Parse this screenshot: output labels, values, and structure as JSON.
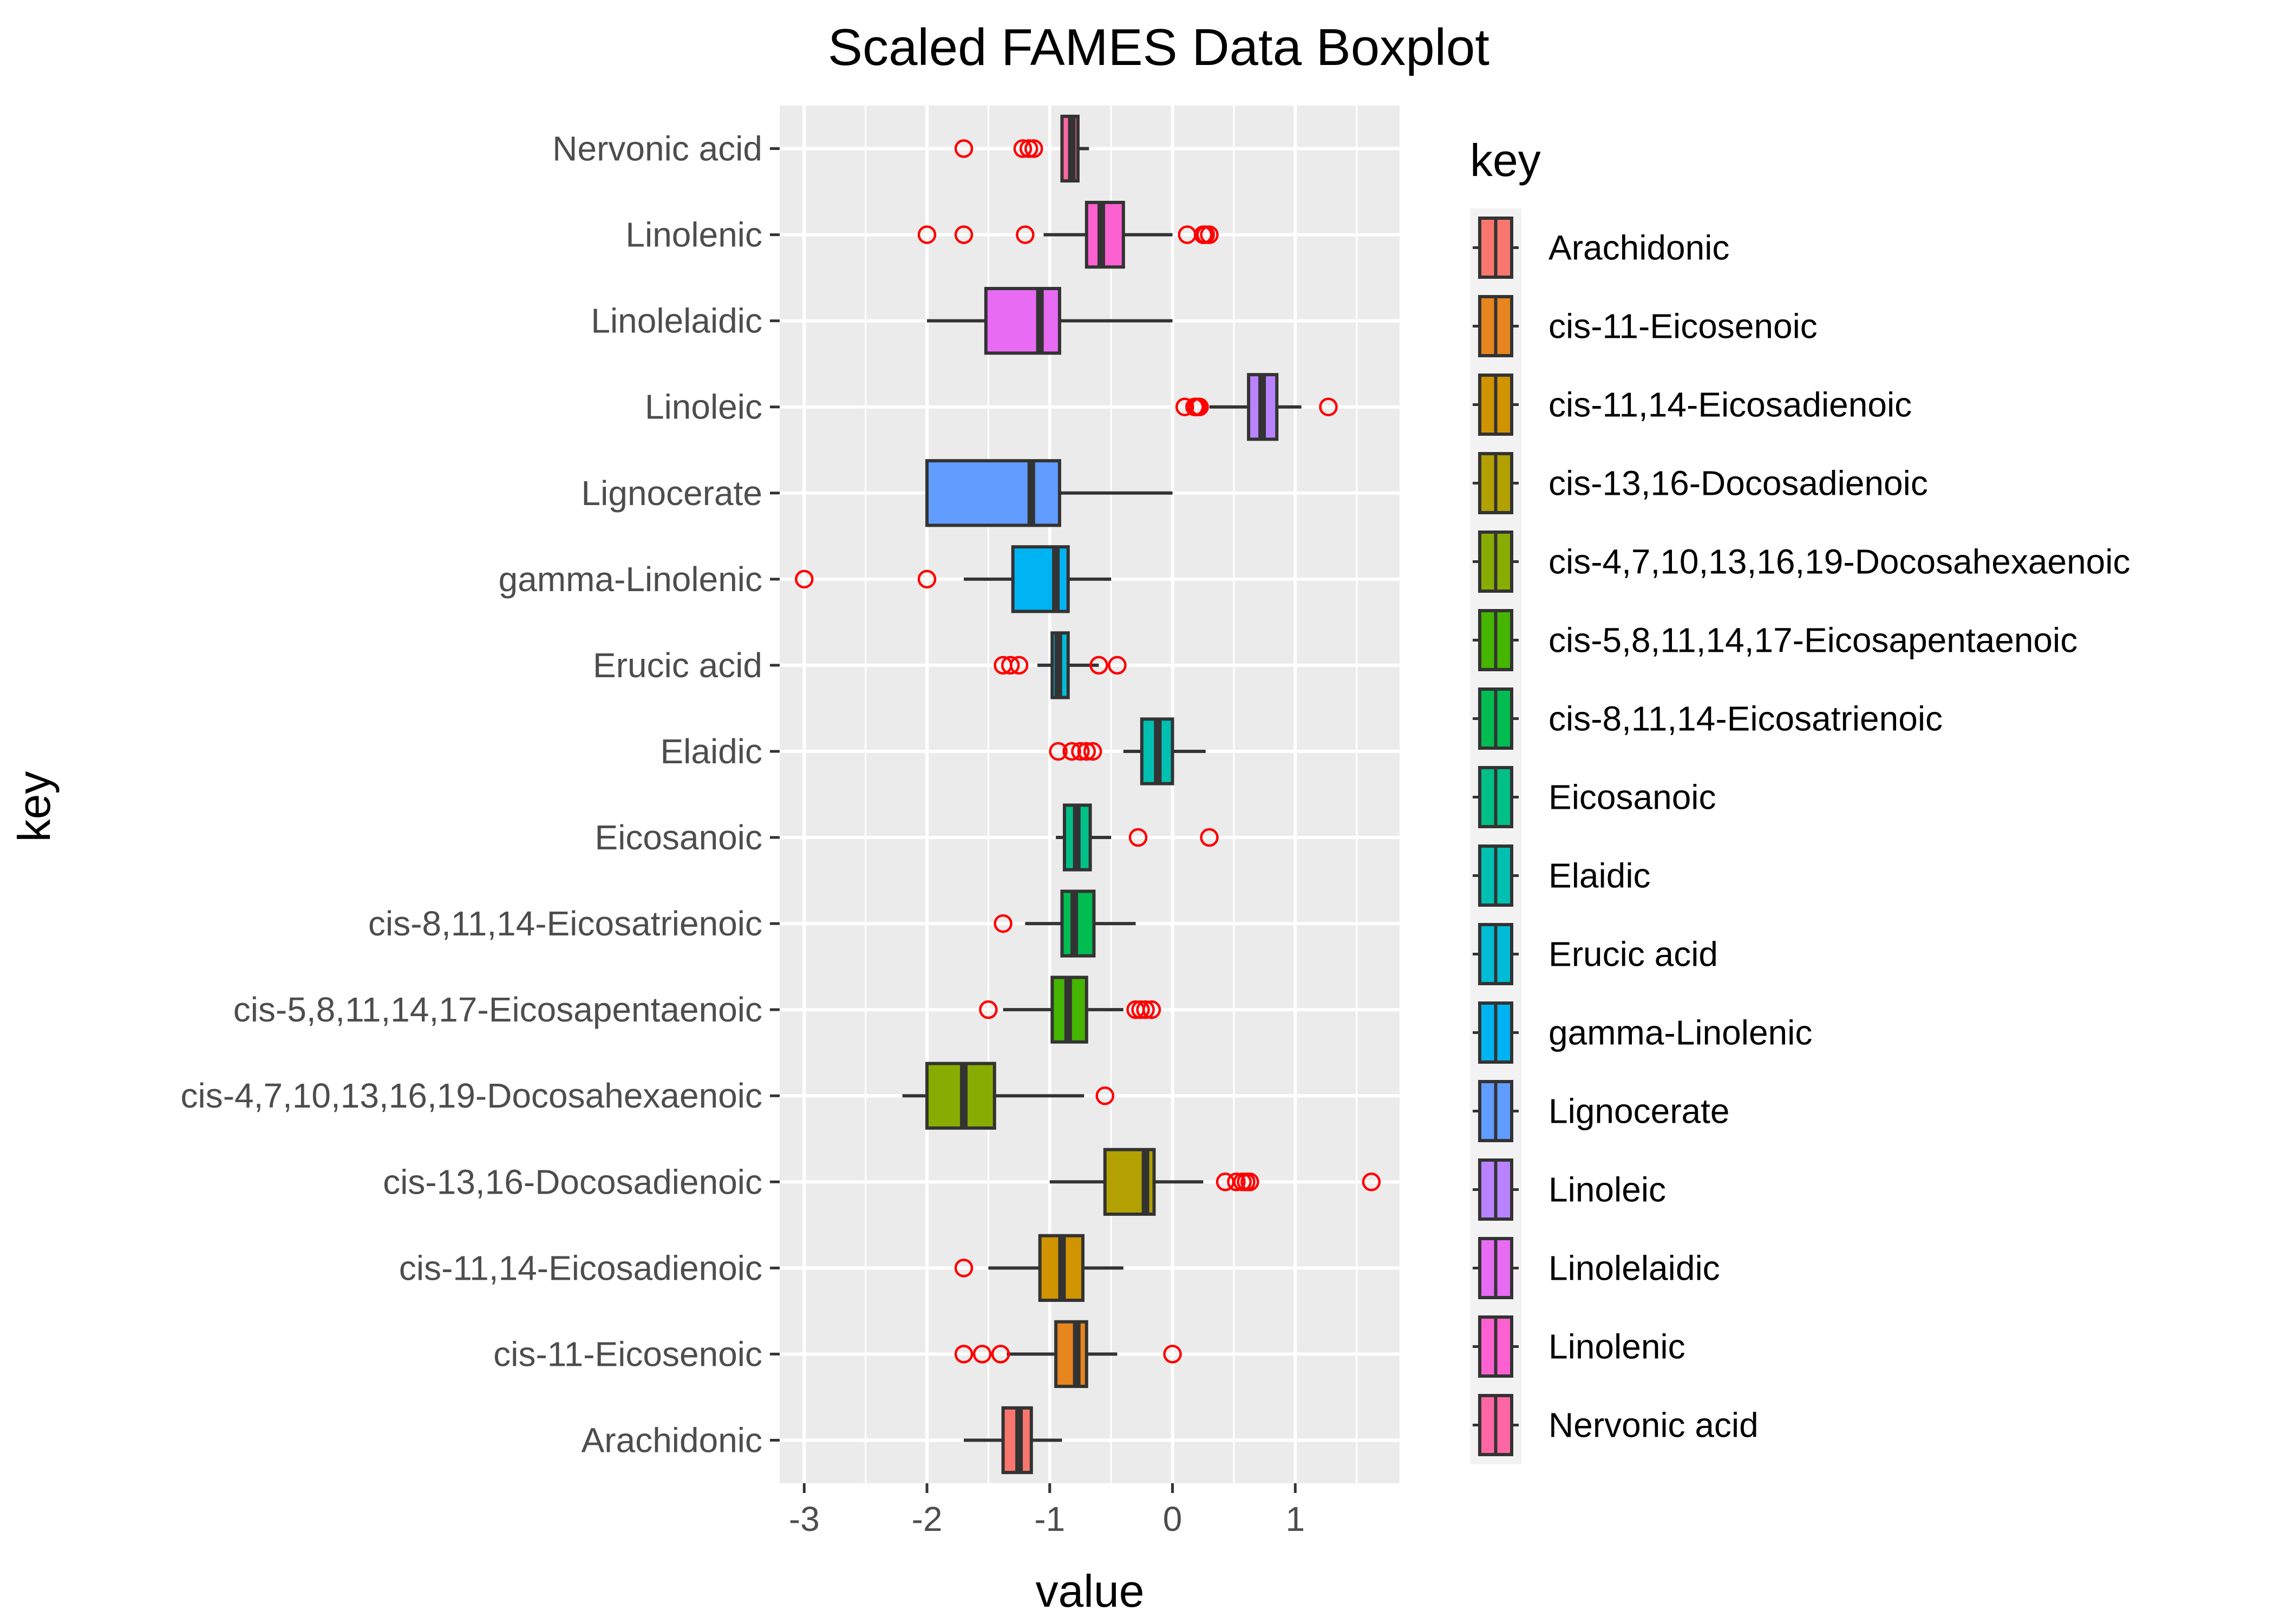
{
  "chart_data": {
    "type": "boxplot",
    "orientation": "horizontal",
    "title": "Scaled FAMES Data Boxplot",
    "xlabel": "value",
    "ylabel": "key",
    "xlim": [
      -3.2,
      1.85
    ],
    "xticks": [
      -3,
      -2,
      -1,
      0,
      1
    ],
    "xtick_labels": [
      "-3",
      "-2",
      "-1",
      "0",
      "1"
    ],
    "grid": true,
    "panel_background": "#EBEBEB",
    "grid_color": "#FFFFFF",
    "outlier_color": "#FF0000",
    "legend": {
      "title": "key",
      "placement": "right"
    },
    "series": [
      {
        "name": "Arachidonic",
        "color": "#F8766D",
        "whisker_low": -1.7,
        "q1": -1.38,
        "median": -1.25,
        "q3": -1.15,
        "whisker_high": -0.9,
        "outliers": []
      },
      {
        "name": "cis-11-Eicosenoic",
        "color": "#E7851E",
        "whisker_low": -1.35,
        "q1": -0.95,
        "median": -0.78,
        "q3": -0.7,
        "whisker_high": -0.45,
        "outliers": [
          -1.7,
          -1.55,
          -1.4,
          0.0
        ]
      },
      {
        "name": "cis-11,14-Eicosadienoic",
        "color": "#D09400",
        "whisker_low": -1.5,
        "q1": -1.08,
        "median": -0.9,
        "q3": -0.73,
        "whisker_high": -0.4,
        "outliers": [
          -1.7
        ]
      },
      {
        "name": "cis-13,16-Docosadienoic",
        "color": "#B2A100",
        "whisker_low": -1.0,
        "q1": -0.55,
        "median": -0.22,
        "q3": -0.15,
        "whisker_high": 0.25,
        "outliers": [
          0.43,
          0.52,
          0.57,
          0.6,
          0.63,
          1.62
        ]
      },
      {
        "name": "cis-4,7,10,13,16,19-Docosahexaenoic",
        "color": "#89AC00",
        "whisker_low": -2.2,
        "q1": -2.0,
        "median": -1.7,
        "q3": -1.45,
        "whisker_high": -0.72,
        "outliers": [
          -0.55
        ]
      },
      {
        "name": "cis-5,8,11,14,17-Eicosapentaenoic",
        "color": "#45B500",
        "whisker_low": -1.38,
        "q1": -0.98,
        "median": -0.85,
        "q3": -0.7,
        "whisker_high": -0.4,
        "outliers": [
          -1.5,
          -0.3,
          -0.26,
          -0.22,
          -0.17
        ]
      },
      {
        "name": "cis-8,11,14-Eicosatrienoic",
        "color": "#00BC51",
        "whisker_low": -1.2,
        "q1": -0.9,
        "median": -0.8,
        "q3": -0.64,
        "whisker_high": -0.3,
        "outliers": [
          -1.38
        ]
      },
      {
        "name": "Eicosanoic",
        "color": "#00C087",
        "whisker_low": -0.95,
        "q1": -0.88,
        "median": -0.78,
        "q3": -0.67,
        "whisker_high": -0.5,
        "outliers": [
          -0.28,
          0.3
        ]
      },
      {
        "name": "Elaidic",
        "color": "#00C0B2",
        "whisker_low": -0.4,
        "q1": -0.25,
        "median": -0.12,
        "q3": 0.0,
        "whisker_high": 0.27,
        "outliers": [
          -0.93,
          -0.82,
          -0.75,
          -0.7,
          -0.65
        ]
      },
      {
        "name": "Erucic acid",
        "color": "#00BCD6",
        "whisker_low": -1.1,
        "q1": -0.98,
        "median": -0.93,
        "q3": -0.85,
        "whisker_high": -0.6,
        "outliers": [
          -1.38,
          -1.32,
          -1.25,
          -0.6,
          -0.45
        ]
      },
      {
        "name": "gamma-Linolenic",
        "color": "#00B3F2",
        "whisker_low": -1.7,
        "q1": -1.3,
        "median": -0.95,
        "q3": -0.85,
        "whisker_high": -0.5,
        "outliers": [
          -3.0,
          -2.0
        ]
      },
      {
        "name": "Lignocerate",
        "color": "#619CFF",
        "whisker_low": -2.0,
        "q1": -2.0,
        "median": -1.15,
        "q3": -0.92,
        "whisker_high": 0.0,
        "outliers": []
      },
      {
        "name": "Linoleic",
        "color": "#B983FF",
        "whisker_low": 0.3,
        "q1": 0.62,
        "median": 0.73,
        "q3": 0.85,
        "whisker_high": 1.05,
        "outliers": [
          0.1,
          0.18,
          0.2,
          0.22,
          1.27
        ]
      },
      {
        "name": "Linolelaidic",
        "color": "#E76BF3",
        "whisker_low": -2.0,
        "q1": -1.52,
        "median": -1.08,
        "q3": -0.92,
        "whisker_high": 0.0,
        "outliers": []
      },
      {
        "name": "Linolenic",
        "color": "#FD61D1",
        "whisker_low": -1.05,
        "q1": -0.7,
        "median": -0.58,
        "q3": -0.4,
        "whisker_high": 0.0,
        "outliers": [
          -2.0,
          -1.7,
          -1.2,
          0.12,
          0.25,
          0.27,
          0.3
        ]
      },
      {
        "name": "Nervonic acid",
        "color": "#FF67A4",
        "whisker_low": -0.9,
        "q1": -0.9,
        "median": -0.82,
        "q3": -0.77,
        "whisker_high": -0.68,
        "outliers": [
          -1.7,
          -1.22,
          -1.17,
          -1.13
        ]
      }
    ]
  }
}
